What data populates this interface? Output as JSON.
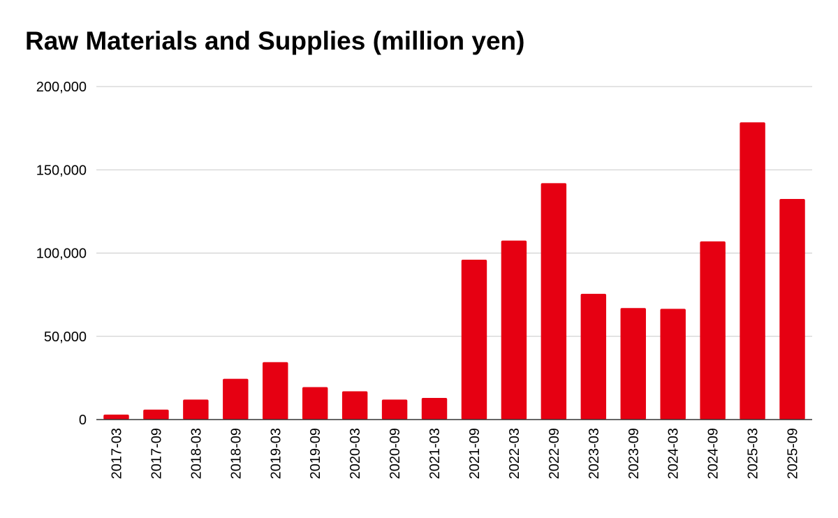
{
  "chart_data": {
    "type": "bar",
    "title": "Raw Materials and Supplies (million yen)",
    "xlabel": "",
    "ylabel": "",
    "categories": [
      "2017-03",
      "2017-09",
      "2018-03",
      "2018-09",
      "2019-03",
      "2019-09",
      "2020-03",
      "2020-09",
      "2021-03",
      "2021-09",
      "2022-03",
      "2022-09",
      "2023-03",
      "2023-09",
      "2024-03",
      "2024-09",
      "2025-03",
      "2025-09"
    ],
    "values": [
      3000,
      6000,
      12000,
      24500,
      34500,
      19500,
      17000,
      12000,
      13000,
      96000,
      107500,
      142000,
      75500,
      67000,
      66500,
      107000,
      178500,
      132500
    ],
    "ylim": [
      0,
      200000
    ],
    "yticks": [
      0,
      50000,
      100000,
      150000,
      200000
    ],
    "ytick_labels": [
      "0",
      "50,000",
      "100,000",
      "150,000",
      "200,000"
    ],
    "grid": true,
    "legend": "none",
    "colors": {
      "bar": "#e60012",
      "grid": "#c8c8c8",
      "axis": "#333333"
    }
  }
}
